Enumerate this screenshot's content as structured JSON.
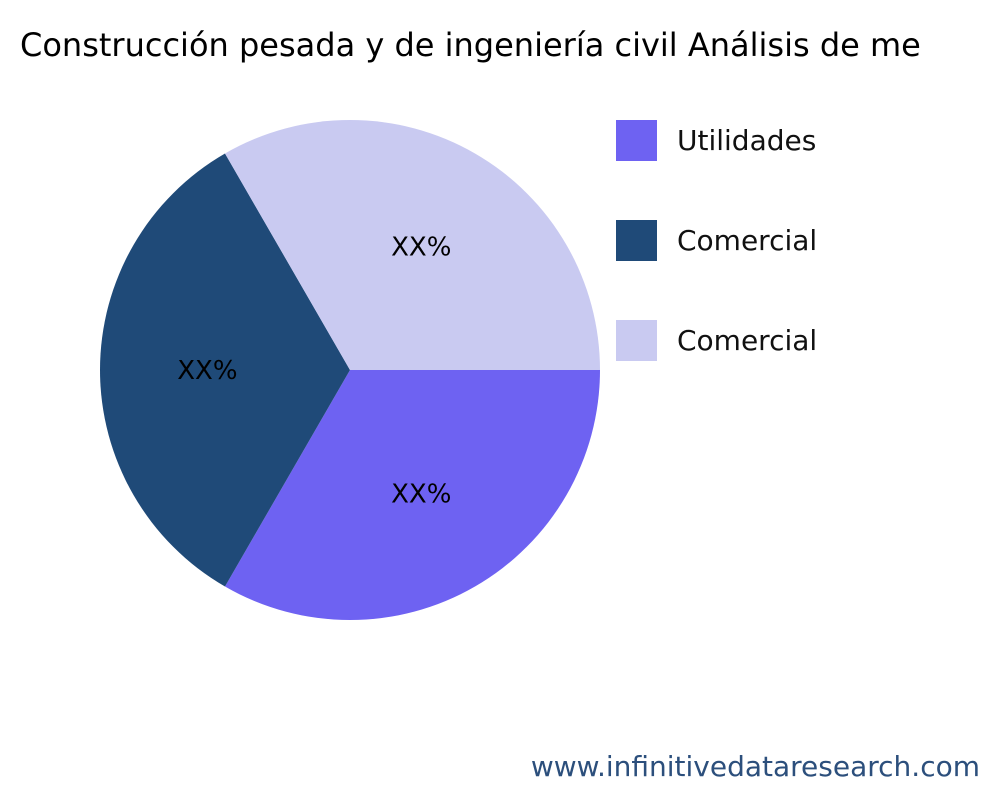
{
  "chart_data": {
    "type": "pie",
    "title": "Construcción pesada y de ingeniería civil Análisis de me",
    "categories": [
      "Utilidades",
      "Comercial",
      "Comercial"
    ],
    "values": [
      33.33,
      33.33,
      33.33
    ],
    "data_labels": [
      "XX%",
      "XX%",
      "XX%"
    ],
    "colors": [
      "#6E62F2",
      "#1F4A78",
      "#C9CAF1"
    ],
    "legend_position": "right"
  },
  "watermark": "www.infinitivedataresearch.com"
}
